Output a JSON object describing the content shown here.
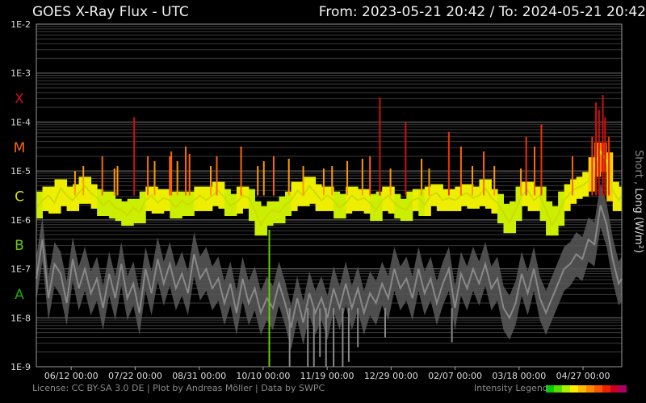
{
  "header": {
    "title": "GOES X-Ray Flux - UTC",
    "range_text": "From: 2023-05-21 20:42  /  To: 2024-05-21 20:42"
  },
  "footer": {
    "license_text": "License: CC BY-SA 3.0 DE | Plot by Andreas Möller | Data by SWPC",
    "legend_text": "Intensity Legend",
    "legend_colors": [
      "#00cc00",
      "#55dd00",
      "#aaee00",
      "#ffee00",
      "#ffbb00",
      "#ff8800",
      "#ff5500",
      "#ee2200",
      "#cc0022",
      "#aa0066"
    ]
  },
  "chart_data": {
    "type": "line",
    "title": "GOES X-Ray Flux - UTC",
    "y_scale": "log",
    "ylim": [
      "1E-9",
      "1E-2"
    ],
    "y_ticks": [
      "1E-2",
      "1E-3",
      "1E-4",
      "1E-5",
      "1E-6",
      "1E-7",
      "1E-8",
      "1E-9"
    ],
    "flare_classes": [
      {
        "label": "X",
        "color": "#cc1111",
        "at": "1E-3.5"
      },
      {
        "label": "M",
        "color": "#ff6600",
        "at": "1E-4.5"
      },
      {
        "label": "C",
        "color": "#dddd00",
        "at": "1E-5.5"
      },
      {
        "label": "B",
        "color": "#66cc00",
        "at": "1E-6.5"
      },
      {
        "label": "A",
        "color": "#22aa00",
        "at": "1E-7.5"
      }
    ],
    "x_start": "2023-05-21 20:42",
    "x_end": "2024-05-21 20:42",
    "x_ticks": [
      "06/12 00:00",
      "07/22 00:00",
      "08/31 00:00",
      "10/10 00:00",
      "11/19 00:00",
      "12/29 00:00",
      "02/07 00:00",
      "03/18 00:00",
      "04/27 00:00"
    ],
    "ylabel": "Short , Long (W/m²)",
    "series": [
      {
        "name": "Long",
        "color_scale": "intensity",
        "base_log10": [
          [
            0,
            -5.75
          ],
          [
            8,
            -5.6
          ],
          [
            16,
            -5.5
          ],
          [
            24,
            -5.65
          ],
          [
            32,
            -5.35
          ],
          [
            40,
            -5.5
          ],
          [
            48,
            -5.6
          ],
          [
            56,
            -5.45
          ],
          [
            64,
            -5.3
          ],
          [
            72,
            -5.45
          ],
          [
            80,
            -5.55
          ],
          [
            88,
            -5.7
          ],
          [
            96,
            -5.6
          ],
          [
            104,
            -5.75
          ],
          [
            112,
            -5.8
          ],
          [
            120,
            -5.9
          ],
          [
            128,
            -5.75
          ],
          [
            136,
            -5.85
          ],
          [
            144,
            -5.6
          ],
          [
            152,
            -5.5
          ],
          [
            160,
            -5.65
          ],
          [
            168,
            -5.55
          ],
          [
            176,
            -5.6
          ],
          [
            184,
            -5.75
          ],
          [
            192,
            -5.6
          ],
          [
            200,
            -5.7
          ],
          [
            208,
            -5.6
          ],
          [
            216,
            -5.5
          ],
          [
            224,
            -5.6
          ],
          [
            232,
            -5.5
          ],
          [
            240,
            -5.4
          ],
          [
            248,
            -5.55
          ],
          [
            256,
            -5.7
          ],
          [
            264,
            -5.65
          ],
          [
            272,
            -5.5
          ],
          [
            280,
            -5.55
          ],
          [
            288,
            -5.8
          ],
          [
            296,
            -6.1
          ],
          [
            304,
            -5.9
          ],
          [
            312,
            -5.8
          ],
          [
            320,
            -5.85
          ],
          [
            328,
            -5.7
          ],
          [
            336,
            -5.6
          ],
          [
            344,
            -5.4
          ],
          [
            352,
            -5.5
          ],
          [
            360,
            -5.3
          ],
          [
            368,
            -5.45
          ],
          [
            376,
            -5.6
          ],
          [
            384,
            -5.5
          ],
          [
            392,
            -5.6
          ],
          [
            400,
            -5.75
          ],
          [
            408,
            -5.65
          ],
          [
            416,
            -5.5
          ],
          [
            424,
            -5.6
          ],
          [
            432,
            -5.55
          ],
          [
            440,
            -5.65
          ],
          [
            448,
            -5.8
          ],
          [
            456,
            -5.6
          ],
          [
            464,
            -5.5
          ],
          [
            472,
            -5.65
          ],
          [
            480,
            -5.75
          ],
          [
            488,
            -5.8
          ],
          [
            496,
            -5.6
          ],
          [
            504,
            -5.55
          ],
          [
            512,
            -5.7
          ],
          [
            520,
            -5.5
          ],
          [
            528,
            -5.45
          ],
          [
            536,
            -5.6
          ],
          [
            544,
            -5.55
          ],
          [
            552,
            -5.6
          ],
          [
            560,
            -5.5
          ],
          [
            568,
            -5.45
          ],
          [
            576,
            -5.55
          ],
          [
            584,
            -5.5
          ],
          [
            592,
            -5.35
          ],
          [
            600,
            -5.55
          ],
          [
            608,
            -5.65
          ],
          [
            616,
            -5.85
          ],
          [
            624,
            -6.05
          ],
          [
            632,
            -5.8
          ],
          [
            640,
            -5.5
          ],
          [
            648,
            -5.4
          ],
          [
            656,
            -5.6
          ],
          [
            664,
            -5.5
          ],
          [
            672,
            -5.8
          ],
          [
            680,
            -6.1
          ],
          [
            688,
            -5.9
          ],
          [
            696,
            -5.6
          ],
          [
            704,
            -5.45
          ],
          [
            712,
            -5.35
          ],
          [
            720,
            -5.3
          ],
          [
            728,
            -5.2
          ],
          [
            736,
            -4.9
          ],
          [
            744,
            -4.6
          ],
          [
            752,
            -4.8
          ],
          [
            760,
            -5.4
          ],
          [
            768,
            -5.6
          ],
          [
            772,
            -5.5
          ]
        ],
        "spikes_log10": [
          [
            51,
            -5.0
          ],
          [
            62,
            -4.9
          ],
          [
            87,
            -4.7
          ],
          [
            103,
            -4.95
          ],
          [
            107,
            -4.9
          ],
          [
            129,
            -3.9
          ],
          [
            147,
            -4.7
          ],
          [
            156,
            -4.8
          ],
          [
            176,
            -4.7
          ],
          [
            178,
            -4.6
          ],
          [
            186,
            -4.8
          ],
          [
            197,
            -4.5
          ],
          [
            202,
            -4.65
          ],
          [
            230,
            -4.9
          ],
          [
            238,
            -4.7
          ],
          [
            270,
            -4.5
          ],
          [
            292,
            -4.9
          ],
          [
            300,
            -4.8
          ],
          [
            313,
            -4.7
          ],
          [
            333,
            -4.75
          ],
          [
            352,
            -4.9
          ],
          [
            379,
            -4.95
          ],
          [
            390,
            -4.9
          ],
          [
            410,
            -4.8
          ],
          [
            430,
            -4.75
          ],
          [
            440,
            -4.7
          ],
          [
            453,
            -3.5
          ],
          [
            467,
            -4.95
          ],
          [
            487,
            -4.0
          ],
          [
            508,
            -4.75
          ],
          [
            518,
            -4.95
          ],
          [
            544,
            -4.2
          ],
          [
            560,
            -4.5
          ],
          [
            575,
            -4.9
          ],
          [
            590,
            -4.6
          ],
          [
            604,
            -4.9
          ],
          [
            639,
            -4.95
          ],
          [
            646,
            -4.3
          ],
          [
            657,
            -4.5
          ],
          [
            666,
            -4.05
          ],
          [
            707,
            -4.7
          ],
          [
            733,
            -4.3
          ],
          [
            738,
            -3.6
          ],
          [
            742,
            -3.75
          ],
          [
            747,
            -3.45
          ],
          [
            750,
            -3.9
          ],
          [
            755,
            -4.3
          ]
        ]
      },
      {
        "name": "Short",
        "color": "#888888",
        "base_log10": [
          [
            0,
            -7.2
          ],
          [
            8,
            -6.4
          ],
          [
            16,
            -7.6
          ],
          [
            24,
            -6.9
          ],
          [
            32,
            -7.1
          ],
          [
            40,
            -7.7
          ],
          [
            48,
            -6.8
          ],
          [
            56,
            -7.4
          ],
          [
            64,
            -7.0
          ],
          [
            72,
            -7.5
          ],
          [
            80,
            -7.2
          ],
          [
            88,
            -7.8
          ],
          [
            96,
            -7.1
          ],
          [
            104,
            -7.6
          ],
          [
            112,
            -6.9
          ],
          [
            120,
            -7.6
          ],
          [
            128,
            -7.3
          ],
          [
            136,
            -7.9
          ],
          [
            144,
            -7.0
          ],
          [
            152,
            -7.5
          ],
          [
            160,
            -6.8
          ],
          [
            168,
            -7.3
          ],
          [
            176,
            -6.9
          ],
          [
            184,
            -7.4
          ],
          [
            192,
            -7.1
          ],
          [
            200,
            -7.5
          ],
          [
            208,
            -6.7
          ],
          [
            216,
            -7.2
          ],
          [
            224,
            -7.0
          ],
          [
            232,
            -7.4
          ],
          [
            240,
            -7.2
          ],
          [
            248,
            -7.7
          ],
          [
            256,
            -7.3
          ],
          [
            264,
            -7.9
          ],
          [
            272,
            -7.2
          ],
          [
            280,
            -7.7
          ],
          [
            288,
            -7.4
          ],
          [
            296,
            -7.9
          ],
          [
            304,
            -7.6
          ],
          [
            312,
            -7.8
          ],
          [
            320,
            -7.3
          ],
          [
            328,
            -7.7
          ],
          [
            336,
            -8.2
          ],
          [
            344,
            -7.6
          ],
          [
            352,
            -8.1
          ],
          [
            360,
            -7.5
          ],
          [
            368,
            -7.9
          ],
          [
            376,
            -7.6
          ],
          [
            384,
            -8.0
          ],
          [
            392,
            -7.4
          ],
          [
            400,
            -7.8
          ],
          [
            408,
            -7.3
          ],
          [
            416,
            -7.8
          ],
          [
            424,
            -7.4
          ],
          [
            432,
            -7.9
          ],
          [
            440,
            -7.5
          ],
          [
            448,
            -7.7
          ],
          [
            456,
            -7.3
          ],
          [
            464,
            -7.6
          ],
          [
            472,
            -7.0
          ],
          [
            480,
            -7.4
          ],
          [
            488,
            -7.2
          ],
          [
            496,
            -7.6
          ],
          [
            504,
            -7.0
          ],
          [
            512,
            -7.5
          ],
          [
            520,
            -7.2
          ],
          [
            528,
            -7.7
          ],
          [
            536,
            -7.3
          ],
          [
            544,
            -7.0
          ],
          [
            552,
            -7.8
          ],
          [
            560,
            -7.1
          ],
          [
            568,
            -7.4
          ],
          [
            576,
            -7.0
          ],
          [
            584,
            -7.3
          ],
          [
            592,
            -6.9
          ],
          [
            600,
            -7.4
          ],
          [
            608,
            -7.2
          ],
          [
            616,
            -7.8
          ],
          [
            624,
            -8.0
          ],
          [
            632,
            -7.7
          ],
          [
            640,
            -7.1
          ],
          [
            648,
            -7.5
          ],
          [
            656,
            -7.0
          ],
          [
            664,
            -7.6
          ],
          [
            672,
            -7.9
          ],
          [
            680,
            -7.6
          ],
          [
            688,
            -7.3
          ],
          [
            696,
            -7.0
          ],
          [
            704,
            -6.9
          ],
          [
            712,
            -6.7
          ],
          [
            720,
            -6.8
          ],
          [
            728,
            -6.4
          ],
          [
            736,
            -6.5
          ],
          [
            744,
            -5.7
          ],
          [
            752,
            -6.1
          ],
          [
            760,
            -6.8
          ],
          [
            768,
            -7.3
          ],
          [
            772,
            -7.2
          ]
        ]
      }
    ],
    "dips_log10": [
      [
        334,
        -9.0
      ],
      [
        358,
        -9.0
      ],
      [
        366,
        -9.0
      ],
      [
        374,
        -8.8
      ],
      [
        382,
        -9.0
      ],
      [
        392,
        -9.0
      ],
      [
        404,
        -9.0
      ],
      [
        412,
        -8.9
      ],
      [
        424,
        -8.6
      ],
      [
        460,
        -8.4
      ],
      [
        548,
        -8.5
      ]
    ],
    "grid": true
  }
}
